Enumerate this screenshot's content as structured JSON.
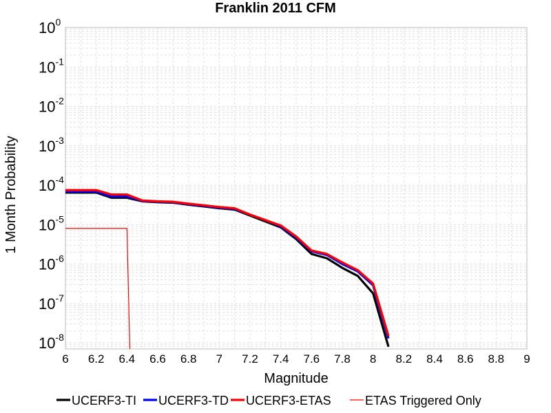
{
  "chart_data": {
    "type": "line",
    "title": "Franklin 2011 CFM",
    "xlabel": "Magnitude",
    "ylabel": "1 Month Probability",
    "xlim": [
      6,
      9
    ],
    "ylim": [
      7e-09,
      1
    ],
    "yscale": "log",
    "grid": true,
    "legend_position": "bottom",
    "x_ticks": [
      "6",
      "6.2",
      "6.4",
      "6.6",
      "6.8",
      "7",
      "7.2",
      "7.4",
      "7.6",
      "7.8",
      "8",
      "8.2",
      "8.4",
      "8.6",
      "8.8",
      "9"
    ],
    "y_ticks": [
      {
        "base": "10",
        "exp": "0"
      },
      {
        "base": "10",
        "exp": "-1"
      },
      {
        "base": "10",
        "exp": "-2"
      },
      {
        "base": "10",
        "exp": "-3"
      },
      {
        "base": "10",
        "exp": "-4"
      },
      {
        "base": "10",
        "exp": "-5"
      },
      {
        "base": "10",
        "exp": "-6"
      },
      {
        "base": "10",
        "exp": "-7"
      },
      {
        "base": "10",
        "exp": "-8"
      }
    ],
    "series": [
      {
        "name": "UCERF3-TI",
        "color": "#000000",
        "x": [
          6.0,
          6.2,
          6.3,
          6.4,
          6.5,
          6.6,
          6.7,
          6.8,
          6.9,
          7.0,
          7.1,
          7.2,
          7.3,
          7.4,
          7.5,
          7.6,
          7.7,
          7.8,
          7.9,
          8.0,
          8.1
        ],
        "y": [
          6.5e-05,
          6.5e-05,
          4.8e-05,
          4.8e-05,
          3.9e-05,
          3.7e-05,
          3.6e-05,
          3.2e-05,
          2.9e-05,
          2.6e-05,
          2.4e-05,
          1.7e-05,
          1.2e-05,
          8.5e-06,
          4.3e-06,
          1.8e-06,
          1.4e-06,
          8e-07,
          5e-07,
          1.8e-07,
          8e-09
        ]
      },
      {
        "name": "UCERF3-TD",
        "color": "#0000ff",
        "x": [
          6.0,
          6.2,
          6.3,
          6.4,
          6.5,
          6.6,
          6.7,
          6.8,
          6.9,
          7.0,
          7.1,
          7.2,
          7.3,
          7.4,
          7.5,
          7.6,
          7.7,
          7.8,
          7.9,
          8.0,
          8.1
        ],
        "y": [
          6.9e-05,
          6.9e-05,
          5.2e-05,
          5.2e-05,
          4e-05,
          3.8e-05,
          3.7e-05,
          3.3e-05,
          3e-05,
          2.7e-05,
          2.5e-05,
          1.8e-05,
          1.3e-05,
          9e-06,
          4.7e-06,
          2.1e-06,
          1.7e-06,
          1e-06,
          6.5e-07,
          2.9e-07,
          1.3e-08
        ]
      },
      {
        "name": "UCERF3-ETAS",
        "color": "#ff0000",
        "x": [
          6.0,
          6.2,
          6.3,
          6.4,
          6.5,
          6.6,
          6.7,
          6.8,
          6.9,
          7.0,
          7.1,
          7.2,
          7.3,
          7.4,
          7.5,
          7.6,
          7.7,
          7.8,
          7.9,
          8.0,
          8.1
        ],
        "y": [
          7.5e-05,
          7.5e-05,
          5.8e-05,
          5.8e-05,
          4.1e-05,
          3.9e-05,
          3.8e-05,
          3.4e-05,
          3.1e-05,
          2.8e-05,
          2.6e-05,
          1.8e-05,
          1.3e-05,
          9.5e-06,
          5e-06,
          2.2e-06,
          1.8e-06,
          1.1e-06,
          7e-07,
          3.2e-07,
          1.5e-08
        ]
      },
      {
        "name": "ETAS Triggered Only",
        "color": "#ff0000",
        "thin": true,
        "x": [
          6.0,
          6.4,
          6.43
        ],
        "y": [
          8e-06,
          8e-06,
          1e-10
        ]
      }
    ]
  }
}
